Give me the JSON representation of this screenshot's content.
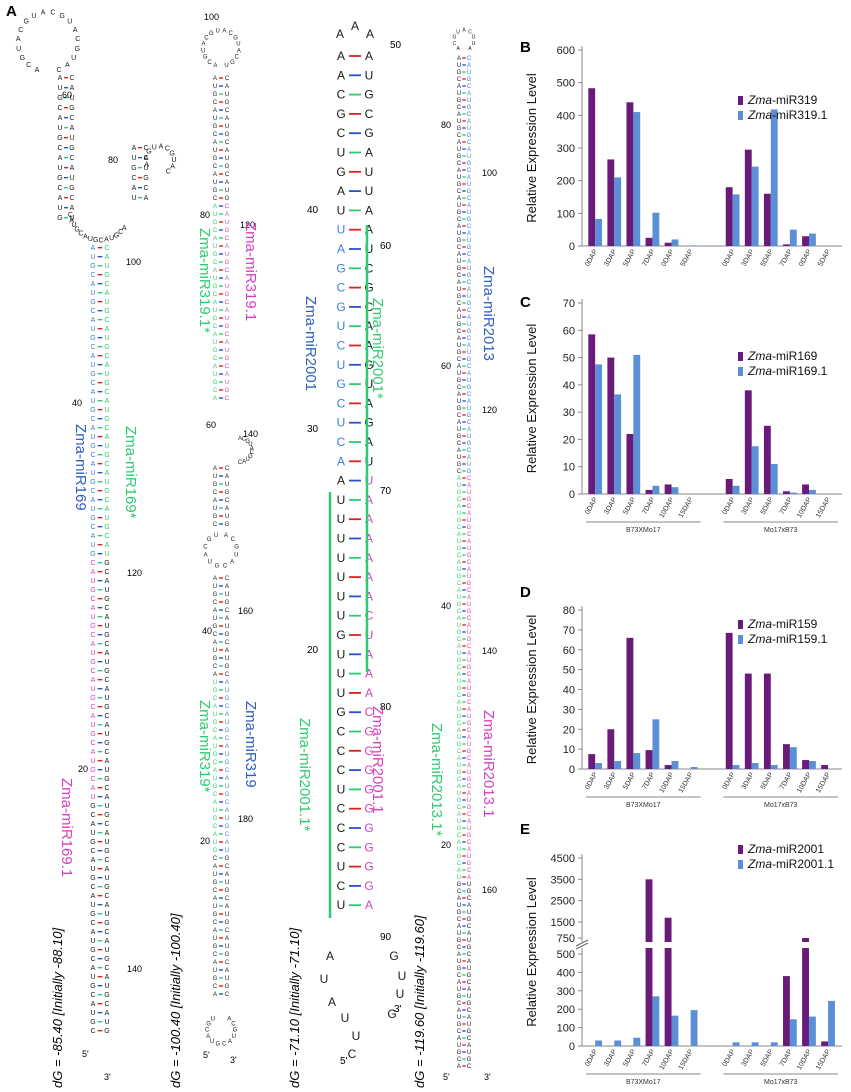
{
  "figure": {
    "panel_labels": [
      "A",
      "B",
      "C",
      "D",
      "E"
    ],
    "a_hairpins": [
      {
        "mirna": "Zma-miR169",
        "mirna_star": "Zma-miR169*",
        "mirna_variant": "Zma-miR169.1",
        "dg": "dG = -85.40 [Initially -88.10]",
        "position_labels": [
          "60",
          "80",
          "100",
          "40",
          "120",
          "20",
          "140"
        ],
        "ends": [
          "5'",
          "3'"
        ]
      },
      {
        "mirna": "Zma-miR319",
        "mirna_star": "Zma-miR319.1*",
        "mirna_variant": "Zma-miR319.1",
        "mirna_star2": "Zma-miR319*",
        "dg": "dG = -100.40 [Initially -100.40]",
        "position_labels": [
          "100",
          "80",
          "120",
          "60",
          "140",
          "40",
          "160",
          "180",
          "20"
        ],
        "ends": [
          "5'",
          "3'"
        ]
      },
      {
        "mirna": "Zma-miR2001",
        "mirna_star": "Zma-miR2001*",
        "mirna_variant": "Zma-miR2001.1",
        "mirna_star2": "Zma-miR2001.1*",
        "dg": "dG = -71.10 [Initially -71.10]",
        "position_labels": [
          "50",
          "40",
          "60",
          "30",
          "70",
          "20",
          "80",
          "90"
        ],
        "ends": [
          "5'",
          "3'"
        ],
        "loop_letters": [
          "A",
          "U",
          "A",
          "U",
          "U",
          "C",
          "G",
          "U",
          "U",
          "G"
        ],
        "stem_rows": [
          [
            "A",
            "A"
          ],
          [
            "A",
            "U"
          ],
          [
            "C",
            "G"
          ],
          [
            "G",
            "C"
          ],
          [
            "C",
            "G"
          ],
          [
            "U",
            "A"
          ],
          [
            "G",
            "U"
          ],
          [
            "A",
            "U"
          ],
          [
            "U",
            "A"
          ],
          [
            "U",
            "A"
          ],
          [
            "A",
            "U"
          ],
          [
            "G",
            "C"
          ],
          [
            "C",
            "G"
          ],
          [
            "G",
            "C"
          ],
          [
            "U",
            "A"
          ],
          [
            "C",
            "A"
          ],
          [
            "U",
            "G"
          ],
          [
            "G",
            "U"
          ],
          [
            "C",
            "A"
          ],
          [
            "U",
            "G"
          ],
          [
            "C",
            "A"
          ],
          [
            "A",
            "U"
          ],
          [
            "A",
            "U"
          ],
          [
            "U",
            "A"
          ],
          [
            "U",
            "A"
          ],
          [
            "U",
            "A"
          ],
          [
            "U",
            "A"
          ],
          [
            "U",
            "A"
          ],
          [
            "U",
            "A"
          ],
          [
            "U",
            "C"
          ],
          [
            "G",
            "U"
          ],
          [
            "U",
            "A"
          ],
          [
            "U",
            "A"
          ],
          [
            "U",
            "A"
          ],
          [
            "G",
            "C"
          ],
          [
            "C",
            "G"
          ],
          [
            "C",
            "G"
          ],
          [
            "C",
            "G"
          ],
          [
            "U",
            "G"
          ],
          [
            "C",
            "G"
          ],
          [
            "C",
            "G"
          ],
          [
            "C",
            "G"
          ],
          [
            "U",
            "G"
          ],
          [
            "C",
            "G"
          ],
          [
            "U",
            "A"
          ]
        ]
      },
      {
        "mirna": "Zma-miR2013",
        "mirna_star": "Zma-miR2013.1*",
        "mirna_variant": "Zma-miR2013.1",
        "dg": "dG = -119.60 [Initially -119.60]",
        "position_labels": [
          "80",
          "100",
          "60",
          "120",
          "40",
          "140",
          "20",
          "160"
        ],
        "ends": [
          "5'",
          "3'"
        ]
      }
    ]
  },
  "chart_data": [
    {
      "panel": "B",
      "type": "bar",
      "ylabel": "Relative Expression Level",
      "ylim": [
        0,
        600
      ],
      "yticks": [
        0,
        100,
        200,
        300,
        400,
        500,
        600
      ],
      "categories": [
        "0DAP",
        "3DAP",
        "5DAP",
        "7DAP",
        "10DAP",
        "15DAP",
        "0DAP",
        "3DAP",
        "5DAP",
        "7DAP",
        "10DAP",
        "15DAP"
      ],
      "groups": [
        "B73XMo17",
        "Mo17xB73"
      ],
      "legend_labels": [
        "Zma-miR319",
        "Zma-miR319.1"
      ],
      "series": [
        {
          "name": "Zma-miR319",
          "color": "#6a1b7a",
          "values": [
            483,
            265,
            440,
            25,
            10,
            0,
            180,
            295,
            160,
            5,
            30,
            0
          ]
        },
        {
          "name": "Zma-miR319.1",
          "color": "#5b8fd6",
          "values": [
            83,
            210,
            410,
            102,
            20,
            2,
            158,
            243,
            418,
            50,
            38,
            0
          ]
        }
      ]
    },
    {
      "panel": "C",
      "type": "bar",
      "ylabel": "Relative Expression Level",
      "ylim": [
        0,
        70
      ],
      "yticks": [
        0,
        10,
        20,
        30,
        40,
        50,
        60,
        70
      ],
      "categories": [
        "0DAP",
        "3DAP",
        "5DAP",
        "7DAP",
        "10DAP",
        "15DAP",
        "0DAP",
        "3DAP",
        "5DAP",
        "7DAP",
        "10DAP",
        "15DAP"
      ],
      "groups": [
        "B73XMo17",
        "Mo17xB73"
      ],
      "legend_labels": [
        "Zma-miR169",
        "Zma-miR169.1"
      ],
      "series": [
        {
          "name": "Zma-miR169",
          "color": "#6a1b7a",
          "values": [
            58.5,
            50,
            22,
            1.5,
            3.5,
            0,
            5.5,
            38,
            25,
            1,
            3.5,
            0
          ]
        },
        {
          "name": "Zma-miR169.1",
          "color": "#5b8fd6",
          "values": [
            47.5,
            36.5,
            51,
            3,
            2.5,
            0,
            3,
            17.5,
            11,
            0.5,
            1.5,
            0
          ]
        }
      ]
    },
    {
      "panel": "D",
      "type": "bar",
      "ylabel": "Relative Expression Level",
      "ylim": [
        0,
        80
      ],
      "yticks": [
        0,
        10,
        20,
        30,
        40,
        50,
        60,
        70,
        80
      ],
      "categories": [
        "0DAP",
        "3DAP",
        "5DAP",
        "7DAP",
        "10DAP",
        "15DAP",
        "0DAP",
        "3DAP",
        "5DAP",
        "7DAP",
        "10DAP",
        "15DAP"
      ],
      "groups": [
        "B73XMo17",
        "Mo17xB73"
      ],
      "legend_labels": [
        "Zma-miR159",
        "Zma-miR159.1"
      ],
      "series": [
        {
          "name": "Zma-miR159",
          "color": "#6a1b7a",
          "values": [
            7.5,
            20,
            66,
            9.5,
            2,
            0,
            68.5,
            48,
            48,
            12.5,
            4.5,
            2
          ]
        },
        {
          "name": "Zma-miR159.1",
          "color": "#5b8fd6",
          "values": [
            3,
            4,
            8,
            25,
            4,
            1,
            2,
            3,
            2,
            11,
            4,
            0
          ]
        }
      ]
    },
    {
      "panel": "E",
      "type": "bar",
      "ylabel": "Relative Expression Level",
      "axis_break": true,
      "yticks_lower": [
        0,
        100,
        200,
        300,
        400,
        500
      ],
      "yticks_upper": [
        750,
        1500,
        2500,
        3500,
        4500
      ],
      "categories": [
        "0DAP",
        "3DAP",
        "5DAP",
        "7DAP",
        "10DAP",
        "15DAP",
        "0DAP",
        "3DAP",
        "5DAP",
        "7DAP",
        "10DAP",
        "15DAP"
      ],
      "groups": [
        "B73XMo17",
        "Mo17xB73"
      ],
      "legend_labels": [
        "Zma-miR2001",
        "Zma-miR2001.1"
      ],
      "series": [
        {
          "name": "Zma-miR2001",
          "color": "#6a1b7a",
          "values": [
            0,
            0,
            0,
            3500,
            1700,
            0,
            0,
            0,
            0,
            380,
            650,
            25
          ]
        },
        {
          "name": "Zma-miR2001.1",
          "color": "#5b8fd6",
          "values": [
            30,
            30,
            45,
            270,
            165,
            195,
            20,
            20,
            20,
            145,
            160,
            245
          ]
        }
      ]
    }
  ]
}
